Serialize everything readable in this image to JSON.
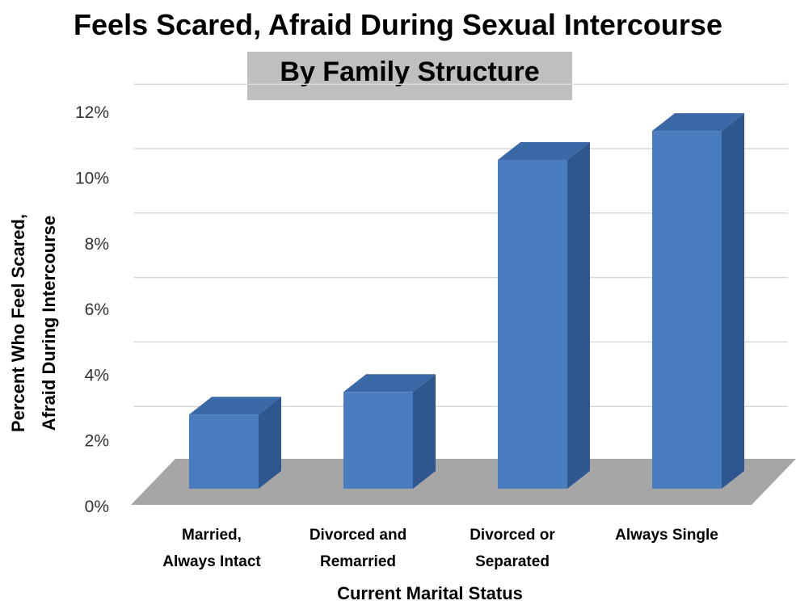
{
  "chart_data": {
    "type": "bar",
    "title": "Feels Scared, Afraid During Sexual Intercourse",
    "subtitle": "By Family Structure",
    "categories": [
      [
        "Married,",
        "Always Intact"
      ],
      [
        "Divorced and",
        "Remarried"
      ],
      [
        "Divorced or",
        "Separated"
      ],
      [
        "Always Single"
      ]
    ],
    "values": [
      2.3,
      3.0,
      10.2,
      11.1
    ],
    "xlabel": "Current Marital Status",
    "ylabel": [
      "Percent Who Feel Scared,",
      "Afraid During Intercourse"
    ],
    "ylim": [
      0,
      12
    ],
    "yticks": [
      "0%",
      "2%",
      "4%",
      "6%",
      "8%",
      "10%",
      "12%"
    ],
    "grid": true,
    "legend": "none",
    "colors": {
      "bar_front": "#4a7cc0",
      "bar_top": "#3b69a8",
      "bar_side": "#2f578f",
      "floor": "#a6a6a6",
      "grid": "#d9d9d9"
    }
  }
}
